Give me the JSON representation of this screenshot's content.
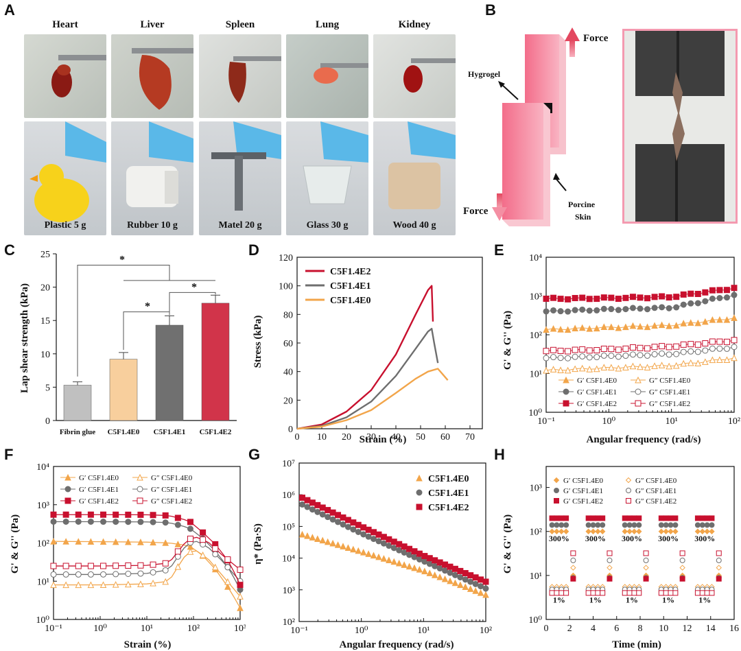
{
  "panels": {
    "a": "A",
    "b": "B",
    "c": "C",
    "d": "D",
    "e": "E",
    "f": "F",
    "g": "G",
    "h": "H"
  },
  "panelA": {
    "organs": [
      "Heart",
      "Liver",
      "Spleen",
      "Lung",
      "Kidney"
    ],
    "materials": [
      "Plastic 5 g",
      "Rubber 10 g",
      "Matel 20 g",
      "Glass 30 g",
      "Wood 40 g"
    ]
  },
  "panelB": {
    "force_top": "Force",
    "force_bottom": "Force",
    "hydrogel": "Hygrogel",
    "skin_line1": "Porcine",
    "skin_line2": "Skin"
  },
  "colors": {
    "e0": "#f2a54a",
    "e1": "#6e6e6e",
    "e2": "#c8102e",
    "fibrin": "#c0c0c0",
    "e0bar": "#f8cf9d",
    "e1bar": "#707070",
    "e2bar": "#d1344a"
  },
  "chart_data": [
    {
      "id": "C",
      "type": "bar",
      "title": "",
      "categories": [
        "Fibrin glue",
        "C5F1.4E0",
        "C5F1.4E1",
        "C5F1.4E2"
      ],
      "values": [
        5.3,
        9.2,
        14.3,
        17.6
      ],
      "errors": [
        0.5,
        1.0,
        1.4,
        1.2
      ],
      "ylabel": "Lap shear strength (kPa)",
      "ylim": [
        0,
        25
      ],
      "yticks": [
        0,
        5,
        10,
        15,
        20,
        25
      ],
      "significance": [
        "*",
        "*",
        "*"
      ]
    },
    {
      "id": "D",
      "type": "line",
      "xlabel": "Strain (%)",
      "ylabel": "Stress (kPa)",
      "xlim": [
        0,
        75
      ],
      "ylim": [
        0,
        120
      ],
      "xticks": [
        0,
        10,
        20,
        30,
        40,
        50,
        60,
        70
      ],
      "yticks": [
        0,
        20,
        40,
        60,
        80,
        100,
        120
      ],
      "series": [
        {
          "name": "C5F1.4E2",
          "x": [
            0,
            10,
            20,
            30,
            40,
            48,
            53,
            54.5,
            55
          ],
          "y": [
            0,
            3,
            12,
            27,
            52,
            80,
            97,
            100,
            75
          ]
        },
        {
          "name": "C5F1.4E1",
          "x": [
            0,
            10,
            20,
            30,
            40,
            48,
            53,
            54.5,
            55.5,
            57
          ],
          "y": [
            0,
            2,
            8,
            19,
            37,
            56,
            68,
            70,
            60,
            46
          ]
        },
        {
          "name": "C5F1.4E0",
          "x": [
            0,
            10,
            20,
            30,
            40,
            48,
            53,
            57,
            59,
            61
          ],
          "y": [
            0,
            1.5,
            6,
            13,
            25,
            35,
            40,
            42,
            38,
            34
          ]
        }
      ]
    },
    {
      "id": "E",
      "type": "scatter",
      "xlabel": "Angular frequency (rad/s)",
      "ylabel": "G' & G'' (Pa)",
      "xlim": [
        0.1,
        100
      ],
      "ylim": [
        1,
        10000
      ],
      "xscale": "log",
      "yscale": "log",
      "xticklabels": [
        "10⁻¹",
        "10⁰",
        "10¹",
        "10²"
      ],
      "yticklabels": [
        "10⁰",
        "10¹",
        "10²",
        "10³",
        "10⁴"
      ],
      "legend": [
        "G′ C5F1.4E0",
        "G″ C5F1.4E0",
        "G′ C5F1.4E1",
        "G″ C5F1.4E1",
        "G′ C5F1.4E2",
        "G″ C5F1.4E2"
      ],
      "series": [
        {
          "name": "G′ C5F1.4E0",
          "x": [
            0.1,
            1,
            10,
            100
          ],
          "y": [
            135,
            155,
            175,
            270
          ]
        },
        {
          "name": "G″ C5F1.4E0",
          "x": [
            0.1,
            1,
            10,
            100
          ],
          "y": [
            12,
            14,
            16,
            25
          ]
        },
        {
          "name": "G′ C5F1.4E1",
          "x": [
            0.1,
            1,
            10,
            100
          ],
          "y": [
            400,
            450,
            500,
            1050
          ]
        },
        {
          "name": "G″ C5F1.4E1",
          "x": [
            0.1,
            1,
            10,
            100
          ],
          "y": [
            25,
            28,
            32,
            48
          ]
        },
        {
          "name": "G′ C5F1.4E2",
          "x": [
            0.1,
            1,
            10,
            100
          ],
          "y": [
            850,
            880,
            950,
            1600
          ]
        },
        {
          "name": "G″ C5F1.4E2",
          "x": [
            0.1,
            1,
            10,
            100
          ],
          "y": [
            38,
            42,
            50,
            72
          ]
        }
      ]
    },
    {
      "id": "F",
      "type": "line",
      "xlabel": "Strain (%)",
      "ylabel": "G' & G'' (Pa)",
      "xlim": [
        0.1,
        1000
      ],
      "ylim": [
        1,
        10000
      ],
      "xscale": "log",
      "yscale": "log",
      "xticklabels": [
        "10⁻¹",
        "10⁰",
        "10¹",
        "10²",
        "10³"
      ],
      "yticklabels": [
        "10⁰",
        "10¹",
        "10²",
        "10³",
        "10⁴"
      ],
      "legend": [
        "G′ C5F1.4E0",
        "G″ C5F1.4E0",
        "G′ C5F1.4E1",
        "G″ C5F1.4E1",
        "G′ C5F1.4E2",
        "G″ C5F1.4E2"
      ],
      "series": [
        {
          "name": "G′ C5F1.4E0",
          "x": [
            0.1,
            1,
            10,
            30,
            80,
            150,
            300,
            600,
            1000
          ],
          "y": [
            110,
            108,
            105,
            100,
            85,
            50,
            20,
            6,
            2
          ]
        },
        {
          "name": "G″ C5F1.4E0",
          "x": [
            0.1,
            1,
            10,
            30,
            60,
            100,
            200,
            400,
            1000
          ],
          "y": [
            8,
            8,
            8.5,
            10,
            40,
            70,
            40,
            15,
            4
          ]
        },
        {
          "name": "G′ C5F1.4E1",
          "x": [
            0.1,
            1,
            10,
            30,
            80,
            150,
            300,
            600,
            1000
          ],
          "y": [
            360,
            360,
            355,
            340,
            250,
            140,
            60,
            20,
            6
          ]
        },
        {
          "name": "G″ C5F1.4E1",
          "x": [
            0.1,
            1,
            10,
            30,
            60,
            100,
            200,
            400,
            1000
          ],
          "y": [
            15,
            15,
            16,
            20,
            70,
            120,
            80,
            35,
            10
          ]
        },
        {
          "name": "G′ C5F1.4E2",
          "x": [
            0.1,
            1,
            10,
            30,
            80,
            150,
            300,
            600,
            1000
          ],
          "y": [
            550,
            550,
            545,
            520,
            380,
            200,
            90,
            30,
            8
          ]
        },
        {
          "name": "G″ C5F1.4E2",
          "x": [
            0.1,
            1,
            10,
            30,
            60,
            100,
            200,
            400,
            1000
          ],
          "y": [
            25,
            25,
            26,
            30,
            90,
            150,
            110,
            50,
            20
          ]
        }
      ]
    },
    {
      "id": "G",
      "type": "scatter",
      "xlabel": "Angular frequency (rad/s)",
      "ylabel": "η* (Pa·S)",
      "xlim": [
        0.1,
        100
      ],
      "ylim": [
        100,
        10000000
      ],
      "xscale": "log",
      "yscale": "log",
      "xticklabels": [
        "10⁻¹",
        "10⁰",
        "10¹",
        "10²"
      ],
      "yticklabels": [
        "10²",
        "10³",
        "10⁴",
        "10⁵",
        "10⁶",
        "10⁷"
      ],
      "legend": [
        "C5F1.4E0",
        "C5F1.4E1",
        "C5F1.4E2"
      ],
      "series": [
        {
          "name": "C5F1.4E0",
          "x": [
            0.1,
            1,
            10,
            100
          ],
          "y": [
            60000,
            16000,
            4000,
            700
          ]
        },
        {
          "name": "C5F1.4E1",
          "x": [
            0.1,
            1,
            10,
            100
          ],
          "y": [
            550000,
            60000,
            8000,
            1100
          ]
        },
        {
          "name": "C5F1.4E2",
          "x": [
            0.1,
            1,
            10,
            100
          ],
          "y": [
            900000,
            100000,
            12000,
            1800
          ]
        }
      ]
    },
    {
      "id": "H",
      "type": "scatter",
      "xlabel": "Time (min)",
      "ylabel": "G' & G'' (Pa)",
      "xlim": [
        0,
        16
      ],
      "ylim": [
        1,
        3000
      ],
      "yscale": "log",
      "xticks": [
        0,
        2,
        4,
        6,
        8,
        10,
        12,
        14,
        16
      ],
      "yticklabels": [
        "10⁰",
        "10¹",
        "10²",
        "10³"
      ],
      "legend": [
        "G′ C5F1.4E0",
        "G″ C5F1.4E0",
        "G′ C5F1.4E1",
        "G″ C5F1.4E1",
        "G′ C5F1.4E2",
        "G″ C5F1.4E2"
      ],
      "high_strain_label": "300%",
      "low_strain_label": "1%",
      "high_strain_levels": {
        "E0": 100,
        "E1": 140,
        "E2": 200
      },
      "low_strain_levels_Gprime": {
        "E0": 10,
        "E1": 8,
        "E2": 7
      },
      "low_strain_levels_Gdoubleprime": {
        "E0": 15,
        "E1": 22,
        "E2": 32
      },
      "high_strain_gdp": {
        "E0": 5.5,
        "E1": 4.8,
        "E2": 4.0
      }
    }
  ]
}
